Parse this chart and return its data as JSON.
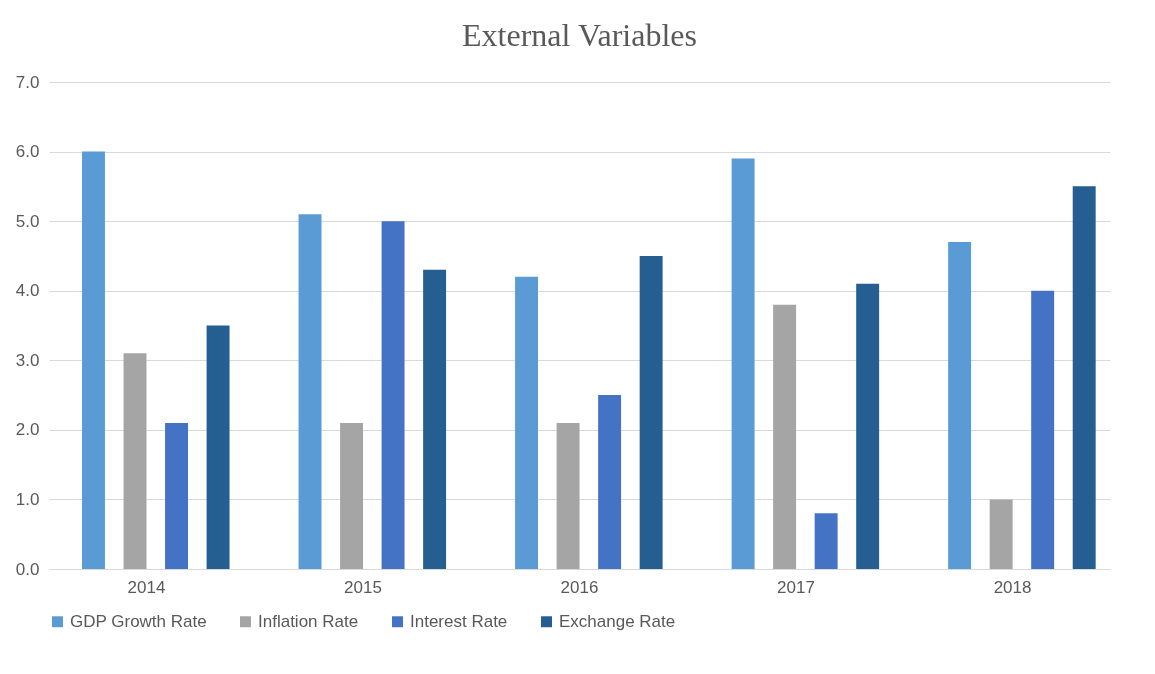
{
  "chart_data": {
    "type": "bar",
    "title": "External Variables",
    "categories": [
      "2014",
      "2015",
      "2016",
      "2017",
      "2018"
    ],
    "series": [
      {
        "name": "GDP Growth Rate",
        "color": "#5b9bd5",
        "values": [
          6.0,
          5.1,
          4.2,
          5.9,
          4.7
        ]
      },
      {
        "name": "Inflation Rate",
        "color": "#a5a5a5",
        "values": [
          3.1,
          2.1,
          2.1,
          3.8,
          1.0
        ]
      },
      {
        "name": "Interest Rate",
        "color": "#4472c4",
        "values": [
          2.1,
          5.0,
          2.5,
          0.8,
          4.0
        ]
      },
      {
        "name": "Exchange Rate",
        "color": "#255e91",
        "values": [
          3.5,
          4.3,
          4.5,
          4.1,
          5.5
        ]
      }
    ],
    "ylim": [
      0,
      7
    ],
    "yticks": [
      {
        "value": 0,
        "label": "0.0"
      },
      {
        "value": 1,
        "label": "1.0"
      },
      {
        "value": 2,
        "label": "2.0"
      },
      {
        "value": 3,
        "label": "3.0"
      },
      {
        "value": 4,
        "label": "4.0"
      },
      {
        "value": 5,
        "label": "5.0"
      },
      {
        "value": 6,
        "label": "6.0"
      },
      {
        "value": 7,
        "label": "7.0"
      }
    ],
    "grid": "y",
    "legend": "bottom"
  }
}
